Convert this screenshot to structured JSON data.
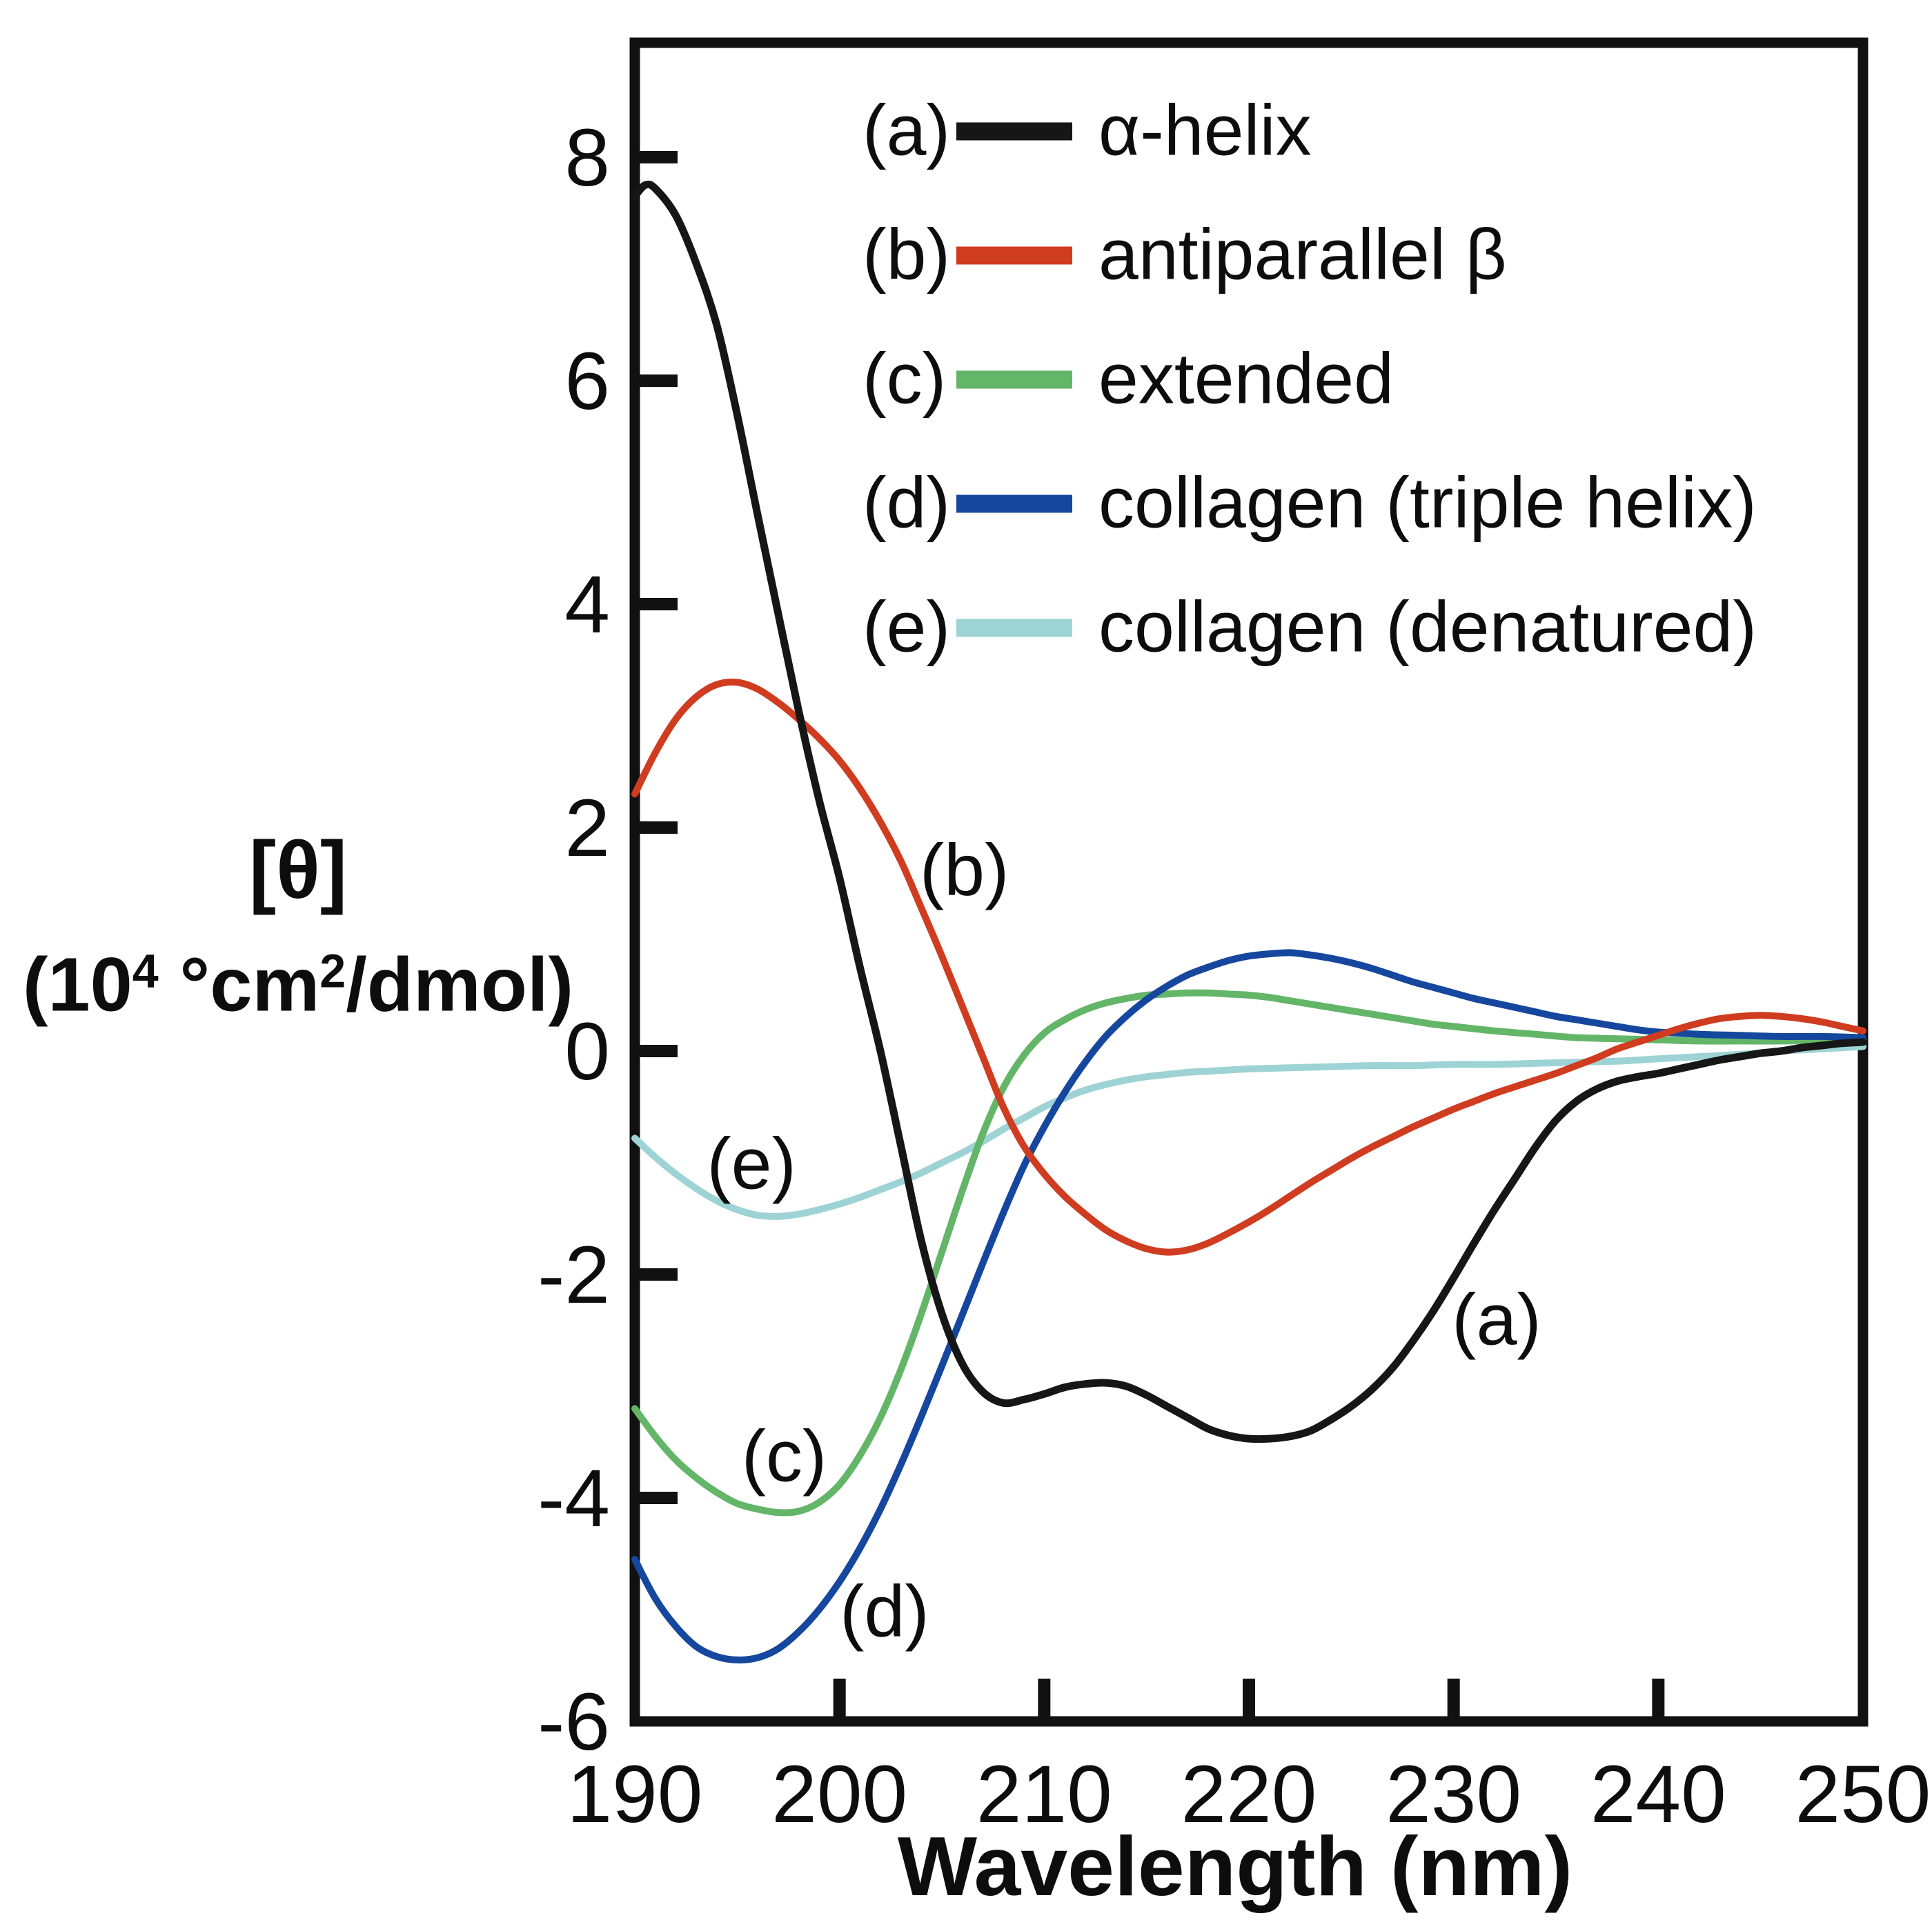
{
  "figure": {
    "background": "#ffffff",
    "frame_color": "#111111",
    "text_color": "#0d0d0d"
  },
  "chart_data": {
    "type": "line",
    "title": "",
    "xlabel": "Wavelength (nm)",
    "ylabel": "[θ] (10⁴ °cm²/dmol)",
    "ylabel_line1": "[θ]",
    "ylabel_line2_parts": {
      "pre": "(10",
      "sup1": "4",
      "mid": " °cm",
      "sup2": "2",
      "post": "/dmol)"
    },
    "xlim": [
      190,
      250
    ],
    "ylim": [
      -6,
      9
    ],
    "grid": false,
    "legend_position": "inside top, below title row (a)-(e)",
    "x_tick_values": [
      190,
      200,
      210,
      220,
      230,
      240,
      250
    ],
    "x_tick_labels": [
      "190",
      "200",
      "210",
      "220",
      "230",
      "240",
      "250"
    ],
    "y_tick_values": [
      8,
      6,
      4,
      2,
      0,
      -2,
      -4,
      -6
    ],
    "y_tick_labels": [
      "8",
      "6",
      "4",
      "2",
      "0",
      "-2",
      "-4",
      "-6"
    ],
    "series": [
      {
        "id": "a",
        "key": "(a)",
        "label": "α-helix",
        "color": "#161616",
        "points": [
          [
            190,
            7.65
          ],
          [
            190.5,
            7.75
          ],
          [
            191,
            7.72
          ],
          [
            192,
            7.48
          ],
          [
            193,
            7.05
          ],
          [
            194,
            6.5
          ],
          [
            195,
            5.7
          ],
          [
            196,
            4.8
          ],
          [
            197,
            3.92
          ],
          [
            198,
            3.05
          ],
          [
            199,
            2.25
          ],
          [
            200,
            1.55
          ],
          [
            201,
            0.75
          ],
          [
            202,
            0.0
          ],
          [
            203,
            -0.85
          ],
          [
            204,
            -1.7
          ],
          [
            205,
            -2.35
          ],
          [
            206,
            -2.8
          ],
          [
            207,
            -3.05
          ],
          [
            208,
            -3.15
          ],
          [
            209,
            -3.12
          ],
          [
            210,
            -3.07
          ],
          [
            211,
            -3.01
          ],
          [
            212,
            -2.98
          ],
          [
            213,
            -2.97
          ],
          [
            214,
            -3.0
          ],
          [
            215,
            -3.08
          ],
          [
            216,
            -3.18
          ],
          [
            217,
            -3.28
          ],
          [
            218,
            -3.38
          ],
          [
            219,
            -3.44
          ],
          [
            220,
            -3.47
          ],
          [
            221,
            -3.47
          ],
          [
            222,
            -3.45
          ],
          [
            223,
            -3.4
          ],
          [
            224,
            -3.3
          ],
          [
            225,
            -3.18
          ],
          [
            226,
            -3.03
          ],
          [
            227,
            -2.84
          ],
          [
            228,
            -2.6
          ],
          [
            229,
            -2.33
          ],
          [
            230,
            -2.03
          ],
          [
            231,
            -1.72
          ],
          [
            232,
            -1.42
          ],
          [
            233,
            -1.14
          ],
          [
            234,
            -0.86
          ],
          [
            235,
            -0.62
          ],
          [
            236,
            -0.45
          ],
          [
            237,
            -0.34
          ],
          [
            238,
            -0.27
          ],
          [
            239,
            -0.23
          ],
          [
            240,
            -0.2
          ],
          [
            241,
            -0.16
          ],
          [
            242,
            -0.12
          ],
          [
            243,
            -0.08
          ],
          [
            244,
            -0.05
          ],
          [
            245,
            -0.02
          ],
          [
            246,
            0.0
          ],
          [
            247,
            0.03
          ],
          [
            248,
            0.05
          ],
          [
            249,
            0.07
          ],
          [
            250,
            0.08
          ]
        ]
      },
      {
        "id": "b",
        "key": "(b)",
        "label": "antiparallel β",
        "color": "#d03c20",
        "points": [
          [
            190,
            2.3
          ],
          [
            191,
            2.67
          ],
          [
            192,
            2.97
          ],
          [
            193,
            3.17
          ],
          [
            194,
            3.28
          ],
          [
            195,
            3.3
          ],
          [
            196,
            3.24
          ],
          [
            197,
            3.12
          ],
          [
            198,
            2.97
          ],
          [
            199,
            2.8
          ],
          [
            200,
            2.6
          ],
          [
            201,
            2.35
          ],
          [
            202,
            2.05
          ],
          [
            203,
            1.7
          ],
          [
            204,
            1.28
          ],
          [
            205,
            0.85
          ],
          [
            206,
            0.4
          ],
          [
            207,
            -0.05
          ],
          [
            208,
            -0.5
          ],
          [
            209,
            -0.85
          ],
          [
            210,
            -1.1
          ],
          [
            211,
            -1.3
          ],
          [
            212,
            -1.46
          ],
          [
            213,
            -1.6
          ],
          [
            214,
            -1.7
          ],
          [
            215,
            -1.77
          ],
          [
            216,
            -1.8
          ],
          [
            217,
            -1.78
          ],
          [
            218,
            -1.72
          ],
          [
            219,
            -1.63
          ],
          [
            220,
            -1.53
          ],
          [
            221,
            -1.42
          ],
          [
            222,
            -1.3
          ],
          [
            223,
            -1.18
          ],
          [
            224,
            -1.07
          ],
          [
            225,
            -0.96
          ],
          [
            226,
            -0.86
          ],
          [
            227,
            -0.77
          ],
          [
            228,
            -0.68
          ],
          [
            229,
            -0.6
          ],
          [
            230,
            -0.52
          ],
          [
            231,
            -0.45
          ],
          [
            232,
            -0.38
          ],
          [
            233,
            -0.32
          ],
          [
            234,
            -0.26
          ],
          [
            235,
            -0.2
          ],
          [
            236,
            -0.13
          ],
          [
            237,
            -0.06
          ],
          [
            238,
            0.02
          ],
          [
            239,
            0.08
          ],
          [
            240,
            0.14
          ],
          [
            241,
            0.2
          ],
          [
            242,
            0.25
          ],
          [
            243,
            0.29
          ],
          [
            244,
            0.31
          ],
          [
            245,
            0.32
          ],
          [
            246,
            0.31
          ],
          [
            247,
            0.29
          ],
          [
            248,
            0.26
          ],
          [
            249,
            0.22
          ],
          [
            250,
            0.18
          ]
        ]
      },
      {
        "id": "c",
        "key": "(c)",
        "label": "extended",
        "color": "#63b568",
        "points": [
          [
            190,
            -3.2
          ],
          [
            191,
            -3.45
          ],
          [
            192,
            -3.66
          ],
          [
            193,
            -3.82
          ],
          [
            194,
            -3.95
          ],
          [
            195,
            -4.05
          ],
          [
            196,
            -4.1
          ],
          [
            197,
            -4.13
          ],
          [
            198,
            -4.12
          ],
          [
            199,
            -4.04
          ],
          [
            200,
            -3.88
          ],
          [
            201,
            -3.62
          ],
          [
            202,
            -3.28
          ],
          [
            203,
            -2.85
          ],
          [
            204,
            -2.35
          ],
          [
            205,
            -1.8
          ],
          [
            206,
            -1.25
          ],
          [
            207,
            -0.74
          ],
          [
            208,
            -0.33
          ],
          [
            209,
            -0.04
          ],
          [
            210,
            0.16
          ],
          [
            211,
            0.28
          ],
          [
            212,
            0.37
          ],
          [
            213,
            0.43
          ],
          [
            214,
            0.47
          ],
          [
            215,
            0.5
          ],
          [
            216,
            0.51
          ],
          [
            217,
            0.52
          ],
          [
            218,
            0.52
          ],
          [
            219,
            0.51
          ],
          [
            220,
            0.5
          ],
          [
            221,
            0.48
          ],
          [
            222,
            0.45
          ],
          [
            223,
            0.42
          ],
          [
            224,
            0.39
          ],
          [
            225,
            0.36
          ],
          [
            226,
            0.33
          ],
          [
            227,
            0.3
          ],
          [
            228,
            0.27
          ],
          [
            229,
            0.24
          ],
          [
            230,
            0.22
          ],
          [
            232,
            0.18
          ],
          [
            234,
            0.15
          ],
          [
            236,
            0.12
          ],
          [
            238,
            0.11
          ],
          [
            240,
            0.1
          ],
          [
            242,
            0.09
          ],
          [
            244,
            0.09
          ],
          [
            246,
            0.09
          ],
          [
            248,
            0.1
          ],
          [
            250,
            0.1
          ]
        ]
      },
      {
        "id": "d",
        "key": "(d)",
        "label": "collagen (triple helix)",
        "color": "#15479e",
        "points": [
          [
            190,
            -4.55
          ],
          [
            191,
            -4.9
          ],
          [
            192,
            -5.15
          ],
          [
            193,
            -5.33
          ],
          [
            194,
            -5.42
          ],
          [
            195,
            -5.45
          ],
          [
            196,
            -5.43
          ],
          [
            197,
            -5.35
          ],
          [
            198,
            -5.2
          ],
          [
            199,
            -5.0
          ],
          [
            200,
            -4.75
          ],
          [
            201,
            -4.45
          ],
          [
            202,
            -4.1
          ],
          [
            203,
            -3.7
          ],
          [
            204,
            -3.27
          ],
          [
            205,
            -2.82
          ],
          [
            206,
            -2.36
          ],
          [
            207,
            -1.9
          ],
          [
            208,
            -1.45
          ],
          [
            209,
            -1.03
          ],
          [
            210,
            -0.68
          ],
          [
            211,
            -0.37
          ],
          [
            212,
            -0.1
          ],
          [
            213,
            0.13
          ],
          [
            214,
            0.31
          ],
          [
            215,
            0.46
          ],
          [
            216,
            0.58
          ],
          [
            217,
            0.68
          ],
          [
            218,
            0.75
          ],
          [
            219,
            0.81
          ],
          [
            220,
            0.85
          ],
          [
            221,
            0.87
          ],
          [
            222,
            0.88
          ],
          [
            223,
            0.86
          ],
          [
            224,
            0.83
          ],
          [
            225,
            0.79
          ],
          [
            226,
            0.74
          ],
          [
            227,
            0.68
          ],
          [
            228,
            0.62
          ],
          [
            229,
            0.57
          ],
          [
            230,
            0.52
          ],
          [
            231,
            0.47
          ],
          [
            232,
            0.43
          ],
          [
            233,
            0.39
          ],
          [
            234,
            0.35
          ],
          [
            235,
            0.31
          ],
          [
            236,
            0.28
          ],
          [
            237,
            0.25
          ],
          [
            238,
            0.22
          ],
          [
            239,
            0.19
          ],
          [
            240,
            0.17
          ],
          [
            242,
            0.15
          ],
          [
            244,
            0.14
          ],
          [
            246,
            0.13
          ],
          [
            248,
            0.13
          ],
          [
            250,
            0.12
          ]
        ]
      },
      {
        "id": "e",
        "key": "(e)",
        "label": "collagen (denatured)",
        "color": "#9ed3d5",
        "points": [
          [
            190,
            -0.78
          ],
          [
            191,
            -0.95
          ],
          [
            192,
            -1.1
          ],
          [
            193,
            -1.23
          ],
          [
            194,
            -1.34
          ],
          [
            195,
            -1.42
          ],
          [
            196,
            -1.47
          ],
          [
            197,
            -1.48
          ],
          [
            198,
            -1.46
          ],
          [
            199,
            -1.42
          ],
          [
            200,
            -1.37
          ],
          [
            201,
            -1.31
          ],
          [
            202,
            -1.24
          ],
          [
            203,
            -1.17
          ],
          [
            204,
            -1.09
          ],
          [
            205,
            -1.0
          ],
          [
            206,
            -0.91
          ],
          [
            207,
            -0.81
          ],
          [
            208,
            -0.7
          ],
          [
            209,
            -0.6
          ],
          [
            210,
            -0.5
          ],
          [
            211,
            -0.42
          ],
          [
            212,
            -0.35
          ],
          [
            213,
            -0.3
          ],
          [
            214,
            -0.26
          ],
          [
            215,
            -0.23
          ],
          [
            216,
            -0.21
          ],
          [
            217,
            -0.19
          ],
          [
            218,
            -0.18
          ],
          [
            219,
            -0.17
          ],
          [
            220,
            -0.16
          ],
          [
            222,
            -0.15
          ],
          [
            224,
            -0.14
          ],
          [
            226,
            -0.13
          ],
          [
            228,
            -0.13
          ],
          [
            230,
            -0.12
          ],
          [
            232,
            -0.12
          ],
          [
            234,
            -0.11
          ],
          [
            236,
            -0.1
          ],
          [
            238,
            -0.09
          ],
          [
            240,
            -0.07
          ],
          [
            242,
            -0.05
          ],
          [
            244,
            -0.03
          ],
          [
            246,
            0.0
          ],
          [
            248,
            0.02
          ],
          [
            250,
            0.04
          ]
        ]
      }
    ],
    "annotations": [
      {
        "text": "(b)",
        "x": 206.1,
        "y": 1.62
      },
      {
        "text": "(e)",
        "x": 195.7,
        "y": -1.01
      },
      {
        "text": "(c)",
        "x": 197.3,
        "y": -3.63
      },
      {
        "text": "(d)",
        "x": 202.2,
        "y": -5.02
      },
      {
        "text": "(a)",
        "x": 232.1,
        "y": -2.41
      }
    ]
  }
}
